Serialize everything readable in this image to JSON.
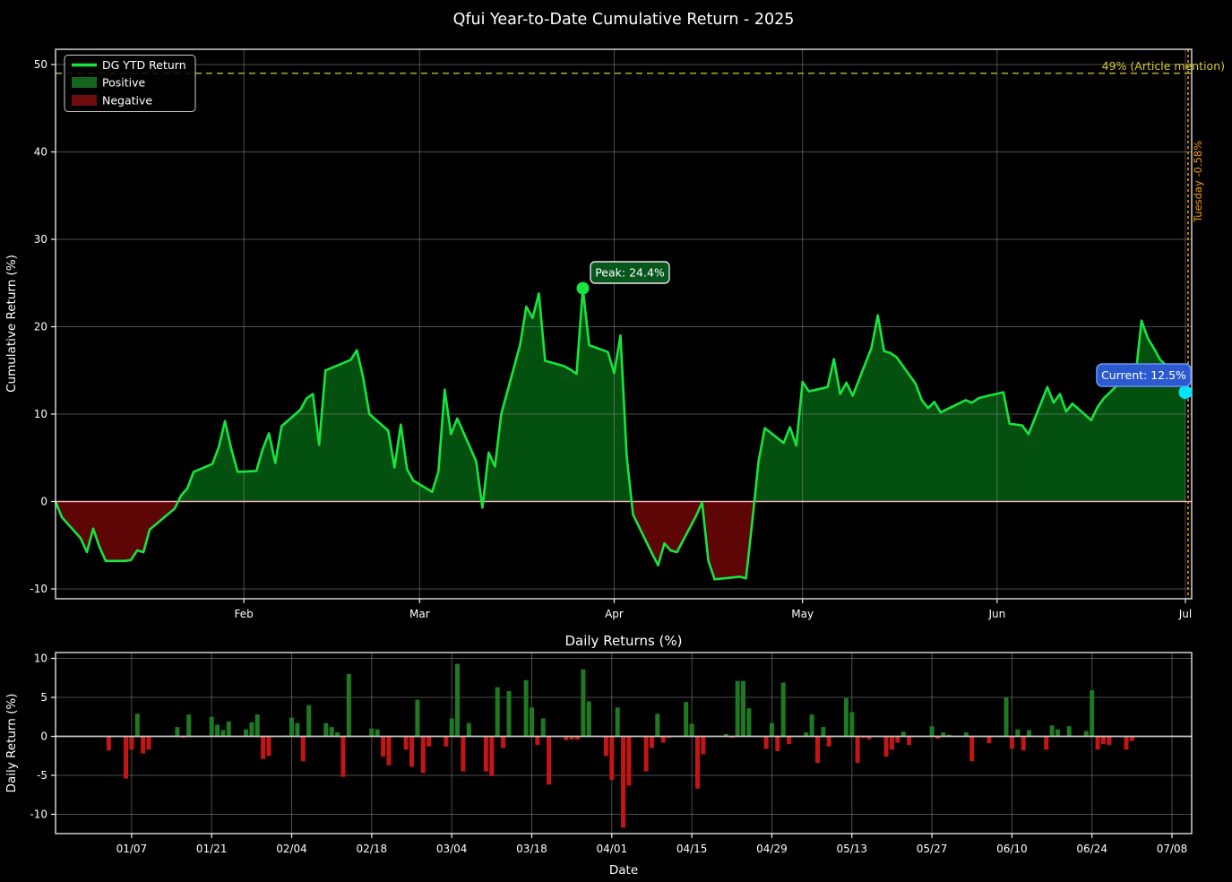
{
  "title": "Qfui Year-to-Date Cumulative Return - 2025",
  "colors": {
    "background": "#000000",
    "text": "#ffffff",
    "grid": "#8a8a8a",
    "spine": "#f0f0f0",
    "line_green": "#17e53f",
    "fill_positive": "#04510f",
    "fill_negative": "#5e0606",
    "zero_line_pink": "#ffb3c1",
    "bar_green": "#1e7a1e",
    "bar_red": "#c41515",
    "zero_line_bottom": "#d9d9d9",
    "reference_yellow": "#d9cb2f",
    "event_orange": "#ff9c00",
    "annotation_peak_bg": "#07571d",
    "annotation_peak_border": "#e8e8e8",
    "annotation_current_bg": "#2b59d0",
    "annotation_current_border": "#6a94f2",
    "current_dot_cyan": "#00e5ff",
    "legend_positive": "#15661c",
    "legend_negative": "#6e0d0d",
    "legend_border": "#cccccc"
  },
  "top_chart": {
    "ylabel": "Cumulative Return (%)",
    "yticks": [
      -10,
      0,
      10,
      20,
      30,
      40,
      50
    ],
    "xticks": [
      {
        "label": "Feb",
        "date": "02/01"
      },
      {
        "label": "Mar",
        "date": "03/01"
      },
      {
        "label": "Apr",
        "date": "04/01"
      },
      {
        "label": "May",
        "date": "05/01"
      },
      {
        "label": "Jun",
        "date": "06/01"
      },
      {
        "label": "Jul",
        "date": "07/01"
      }
    ],
    "legend": [
      {
        "label": "DG YTD Return",
        "swatch": "line"
      },
      {
        "label": "Positive",
        "swatch": "patch-positive"
      },
      {
        "label": "Negative",
        "swatch": "patch-negative"
      }
    ],
    "reference_line": {
      "value": 49,
      "label": "49% (Article mention)"
    },
    "event_line": {
      "date": "07/01",
      "label": "Tuesday -0.58%"
    },
    "annotations": {
      "peak": {
        "date": "03/27",
        "value": 24.4,
        "label": "Peak: 24.4%"
      },
      "current": {
        "date": "07/01",
        "value": 12.5,
        "label": "Current: 12.5%"
      }
    }
  },
  "bottom_chart": {
    "title": "Daily Returns (%)",
    "ylabel": "Daily Return (%)",
    "xlabel": "Date",
    "yticks": [
      -10,
      -5,
      0,
      5,
      10
    ],
    "xtick_labels": [
      "01/07",
      "01/21",
      "02/04",
      "02/18",
      "03/04",
      "03/18",
      "04/01",
      "04/15",
      "04/29",
      "05/13",
      "05/27",
      "06/10",
      "06/24",
      "07/08"
    ]
  },
  "chart_data": {
    "type": "combo",
    "title": "Qfui Year-to-Date Cumulative Return - 2025",
    "subplot_titles": [
      "",
      "Daily Returns (%)"
    ],
    "year": 2025,
    "grid": true,
    "legend_position": "upper-left",
    "top_ylim": [
      -11.1,
      51.7
    ],
    "bottom_ylim": [
      -12.5,
      10.7
    ],
    "dates": [
      "01/02",
      "01/03",
      "01/06",
      "01/07",
      "01/08",
      "01/09",
      "01/10",
      "01/13",
      "01/14",
      "01/15",
      "01/16",
      "01/17",
      "01/21",
      "01/22",
      "01/23",
      "01/24",
      "01/27",
      "01/28",
      "01/29",
      "01/30",
      "01/31",
      "02/03",
      "02/04",
      "02/05",
      "02/06",
      "02/07",
      "02/10",
      "02/11",
      "02/12",
      "02/13",
      "02/14",
      "02/18",
      "02/19",
      "02/20",
      "02/21",
      "02/24",
      "02/25",
      "02/26",
      "02/27",
      "02/28",
      "03/03",
      "03/04",
      "03/05",
      "03/06",
      "03/07",
      "03/10",
      "03/11",
      "03/12",
      "03/13",
      "03/14",
      "03/17",
      "03/18",
      "03/19",
      "03/20",
      "03/21",
      "03/24",
      "03/25",
      "03/26",
      "03/27",
      "03/28",
      "03/31",
      "04/01",
      "04/02",
      "04/03",
      "04/04",
      "04/07",
      "04/08",
      "04/09",
      "04/10",
      "04/11",
      "04/14",
      "04/15",
      "04/16",
      "04/17",
      "04/21",
      "04/22",
      "04/23",
      "04/24",
      "04/25",
      "04/28",
      "04/29",
      "04/30",
      "05/01",
      "05/02",
      "05/05",
      "05/06",
      "05/07",
      "05/08",
      "05/09",
      "05/12",
      "05/13",
      "05/14",
      "05/15",
      "05/16",
      "05/19",
      "05/20",
      "05/21",
      "05/22",
      "05/23",
      "05/27",
      "05/28",
      "05/29",
      "05/30",
      "06/02",
      "06/03",
      "06/04",
      "06/05",
      "06/06",
      "06/09",
      "06/10",
      "06/11",
      "06/12",
      "06/13",
      "06/16",
      "06/17",
      "06/18",
      "06/20",
      "06/23",
      "06/24",
      "06/25",
      "06/26",
      "06/27",
      "06/30",
      "07/01"
    ],
    "series": [
      {
        "name": "DG YTD Return",
        "type": "line-area",
        "units": "percent",
        "values": [
          0.0,
          -1.8,
          -4.2,
          -5.8,
          -3.1,
          -5.2,
          -6.8,
          -6.8,
          -6.7,
          -5.6,
          -5.8,
          -3.2,
          -0.8,
          0.7,
          1.5,
          3.4,
          4.3,
          6.2,
          9.2,
          6.0,
          3.4,
          3.5,
          6.0,
          7.8,
          4.4,
          8.6,
          10.5,
          11.8,
          12.3,
          6.5,
          15.0,
          16.2,
          17.3,
          14.2,
          10.0,
          8.1,
          3.9,
          8.8,
          3.7,
          2.4,
          1.1,
          3.4,
          12.8,
          7.7,
          9.5,
          4.6,
          -0.7,
          5.6,
          4.0,
          10.0,
          17.9,
          22.3,
          21.0,
          23.8,
          16.1,
          15.5,
          15.1,
          14.6,
          24.4,
          17.9,
          17.1,
          14.7,
          19.0,
          5.1,
          -1.5,
          -5.9,
          -7.3,
          -4.8,
          -5.6,
          -5.8,
          -1.7,
          -0.1,
          -6.8,
          -8.9,
          -8.6,
          -8.8,
          -2.3,
          4.6,
          8.4,
          6.7,
          8.5,
          6.4,
          13.7,
          12.6,
          13.1,
          16.3,
          12.3,
          13.6,
          12.1,
          17.6,
          21.3,
          17.2,
          17.0,
          16.5,
          13.5,
          11.6,
          10.7,
          11.4,
          10.2,
          11.6,
          11.3,
          11.8,
          12.0,
          12.5,
          8.9,
          8.8,
          8.7,
          7.7,
          13.1,
          11.3,
          12.3,
          10.3,
          11.2,
          9.3,
          10.8,
          11.8,
          13.2,
          14.0,
          20.7,
          18.7,
          17.5,
          16.2,
          14.2,
          12.5
        ]
      },
      {
        "name": "Daily Return",
        "type": "bar",
        "units": "percent",
        "values": [
          0.0,
          -1.8,
          -5.4,
          -1.7,
          2.9,
          -2.2,
          -1.7,
          0.0,
          0.1,
          1.2,
          -0.2,
          2.8,
          2.5,
          1.5,
          0.8,
          1.9,
          0.9,
          1.8,
          2.8,
          -2.9,
          -2.5,
          0.1,
          2.4,
          1.7,
          -3.2,
          4.0,
          1.7,
          1.2,
          0.5,
          -5.2,
          8.0,
          1.0,
          0.9,
          -2.6,
          -3.7,
          -1.7,
          -3.9,
          4.7,
          -4.7,
          -1.3,
          -1.3,
          2.3,
          9.3,
          -4.5,
          1.7,
          -4.5,
          -5.1,
          6.3,
          -1.5,
          5.8,
          7.2,
          3.7,
          -1.1,
          2.3,
          -6.2,
          -0.5,
          -0.4,
          -0.4,
          8.6,
          4.5,
          -2.5,
          -5.6,
          3.7,
          -11.7,
          -6.3,
          -4.5,
          -1.5,
          2.9,
          -0.8,
          -0.2,
          4.4,
          1.6,
          -6.7,
          -2.3,
          0.3,
          -0.2,
          7.1,
          7.1,
          3.6,
          -1.6,
          1.7,
          -1.9,
          6.9,
          -1.0,
          0.5,
          2.8,
          -3.4,
          1.2,
          -1.3,
          4.9,
          3.1,
          -3.4,
          -0.2,
          -0.4,
          -2.6,
          -1.7,
          -0.8,
          0.6,
          -1.1,
          1.3,
          -0.3,
          0.5,
          0.2,
          0.5,
          -3.2,
          -0.1,
          -0.1,
          -0.9,
          5.0,
          -1.6,
          0.9,
          -1.8,
          0.8,
          -1.7,
          1.4,
          0.9,
          1.3,
          0.7,
          5.9,
          -1.7,
          -1.0,
          -1.1,
          -1.7,
          -0.6
        ]
      }
    ],
    "annotations": [
      {
        "text": "Peak: 24.4%",
        "date": "03/27",
        "value": 24.4
      },
      {
        "text": "Current: 12.5%",
        "date": "07/01",
        "value": 12.5
      },
      {
        "text": "49% (Article mention)",
        "axhline": 49
      },
      {
        "text": "Tuesday -0.58%",
        "axvline_date": "07/01"
      }
    ]
  }
}
